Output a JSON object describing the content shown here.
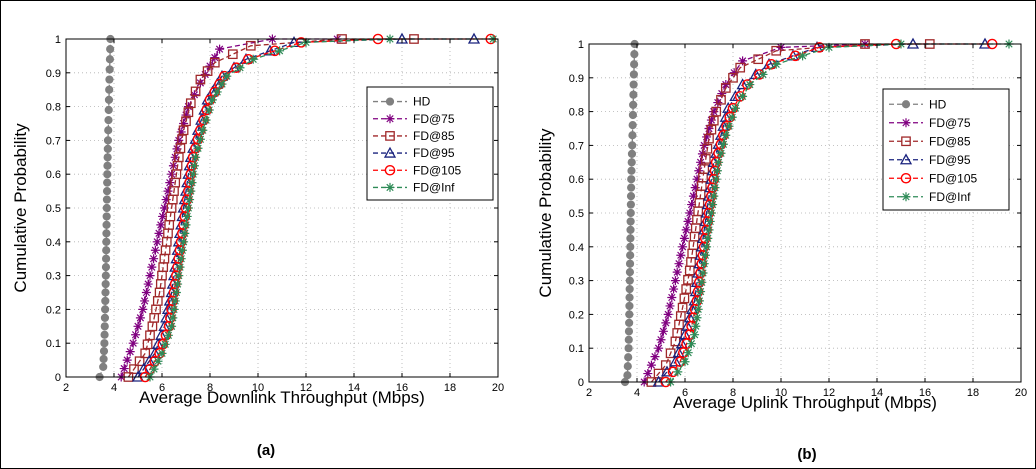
{
  "chart_data": [
    {
      "type": "line",
      "panel": "a",
      "caption": "(a)",
      "xlabel": "Average Downlink Throughput (Mbps)",
      "ylabel": "Cumulative Probability",
      "xlim": [
        2,
        20
      ],
      "ylim": [
        0,
        1
      ],
      "xticks": [
        "2",
        "4",
        "6",
        "8",
        "10",
        "12",
        "14",
        "16",
        "18",
        "20"
      ],
      "yticks": [
        "0",
        "0.1",
        "0.2",
        "0.3",
        "0.4",
        "0.5",
        "0.6",
        "0.7",
        "0.8",
        "0.9",
        "1"
      ],
      "grid": true,
      "legend_position": "upper-right",
      "series": [
        {
          "name": "HD",
          "color": "#808080",
          "marker": "circle",
          "x": [
            3.4,
            3.55,
            3.6,
            3.63,
            3.66,
            3.68,
            3.7,
            3.72,
            3.75,
            3.8,
            3.85
          ],
          "y": [
            0,
            0.03,
            0.1,
            0.2,
            0.3,
            0.4,
            0.5,
            0.6,
            0.7,
            0.85,
            1.0
          ]
        },
        {
          "name": "FD@75",
          "color": "#800080",
          "marker": "star",
          "x": [
            4.3,
            4.8,
            5.2,
            5.5,
            5.8,
            6.1,
            6.4,
            6.7,
            7.1,
            7.6,
            8.4,
            10.6,
            13.3
          ],
          "y": [
            0,
            0.1,
            0.2,
            0.3,
            0.4,
            0.5,
            0.6,
            0.7,
            0.8,
            0.87,
            0.97,
            1.0,
            1.0
          ]
        },
        {
          "name": "FD@85",
          "color": "#a0282a",
          "marker": "square",
          "x": [
            4.6,
            5.3,
            5.6,
            5.9,
            6.1,
            6.3,
            6.5,
            6.7,
            6.9,
            7.2,
            7.6,
            8.2,
            9.7,
            13.5,
            16.5
          ],
          "y": [
            0,
            0.07,
            0.15,
            0.25,
            0.35,
            0.45,
            0.55,
            0.65,
            0.73,
            0.81,
            0.88,
            0.93,
            0.98,
            1.0,
            1.0
          ]
        },
        {
          "name": "FD@95",
          "color": "#1a237e",
          "marker": "triangle",
          "x": [
            5.0,
            5.7,
            6.1,
            6.4,
            6.6,
            6.8,
            7.0,
            7.2,
            7.5,
            7.9,
            8.5,
            9.5,
            11.5,
            16.0,
            19.0
          ],
          "y": [
            0,
            0.07,
            0.15,
            0.25,
            0.35,
            0.45,
            0.55,
            0.65,
            0.73,
            0.82,
            0.89,
            0.94,
            0.99,
            1.0,
            1.0
          ]
        },
        {
          "name": "FD@105",
          "color": "#ff0000",
          "marker": "circle-open",
          "x": [
            5.3,
            5.9,
            6.3,
            6.5,
            6.7,
            6.9,
            7.1,
            7.3,
            7.6,
            8.0,
            8.6,
            9.6,
            11.8,
            15.0,
            19.7
          ],
          "y": [
            0,
            0.07,
            0.15,
            0.25,
            0.35,
            0.45,
            0.55,
            0.65,
            0.73,
            0.82,
            0.89,
            0.94,
            0.99,
            1.0,
            1.0
          ]
        },
        {
          "name": "FD@Inf",
          "color": "#2e8b57",
          "marker": "star",
          "x": [
            5.5,
            6.0,
            6.4,
            6.6,
            6.8,
            7.0,
            7.2,
            7.4,
            7.7,
            8.1,
            8.7,
            9.8,
            12.0,
            15.5,
            19.8
          ],
          "y": [
            0,
            0.07,
            0.15,
            0.25,
            0.35,
            0.45,
            0.55,
            0.65,
            0.73,
            0.82,
            0.89,
            0.94,
            0.99,
            1.0,
            1.0
          ]
        }
      ]
    },
    {
      "type": "line",
      "panel": "b",
      "caption": "(b)",
      "xlabel": "Average Uplink Throughput (Mbps)",
      "ylabel": "Cumulative Probability",
      "xlim": [
        2,
        20
      ],
      "ylim": [
        0,
        1
      ],
      "xticks": [
        "2",
        "4",
        "6",
        "8",
        "10",
        "12",
        "14",
        "16",
        "18",
        "20"
      ],
      "yticks": [
        "0",
        "0.1",
        "0.2",
        "0.3",
        "0.4",
        "0.5",
        "0.6",
        "0.7",
        "0.8",
        "0.9",
        "1"
      ],
      "grid": true,
      "legend_position": "upper-right",
      "series": [
        {
          "name": "HD",
          "color": "#808080",
          "marker": "circle",
          "x": [
            3.5,
            3.6,
            3.65,
            3.68,
            3.7,
            3.72,
            3.74,
            3.76,
            3.8,
            3.85,
            3.9
          ],
          "y": [
            0,
            0.02,
            0.1,
            0.2,
            0.3,
            0.4,
            0.5,
            0.6,
            0.7,
            0.85,
            1.0
          ]
        },
        {
          "name": "FD@75",
          "color": "#800080",
          "marker": "star",
          "x": [
            4.3,
            4.9,
            5.3,
            5.6,
            5.9,
            6.2,
            6.5,
            6.8,
            7.2,
            7.7,
            8.4,
            10.0,
            13.5
          ],
          "y": [
            0,
            0.1,
            0.2,
            0.3,
            0.4,
            0.5,
            0.6,
            0.7,
            0.8,
            0.88,
            0.95,
            0.99,
            1.0
          ]
        },
        {
          "name": "FD@85",
          "color": "#a0282a",
          "marker": "square",
          "x": [
            4.6,
            5.2,
            5.6,
            5.9,
            6.2,
            6.4,
            6.6,
            6.8,
            7.0,
            7.3,
            7.7,
            8.3,
            9.8,
            13.5,
            16.2
          ],
          "y": [
            0,
            0.05,
            0.12,
            0.22,
            0.33,
            0.43,
            0.53,
            0.63,
            0.72,
            0.8,
            0.87,
            0.93,
            0.98,
            1.0,
            1.0
          ]
        },
        {
          "name": "FD@95",
          "color": "#1a237e",
          "marker": "triangle",
          "x": [
            4.9,
            5.6,
            6.0,
            6.4,
            6.6,
            6.8,
            7.0,
            7.2,
            7.5,
            7.8,
            8.4,
            9.5,
            11.5,
            15.5,
            18.5
          ],
          "y": [
            0,
            0.06,
            0.14,
            0.24,
            0.35,
            0.45,
            0.55,
            0.65,
            0.73,
            0.81,
            0.88,
            0.94,
            0.99,
            1.0,
            1.0
          ]
        },
        {
          "name": "FD@105",
          "color": "#ff0000",
          "marker": "circle-open",
          "x": [
            5.2,
            5.8,
            6.2,
            6.5,
            6.7,
            6.9,
            7.1,
            7.3,
            7.6,
            8.0,
            8.6,
            9.6,
            11.6,
            14.8,
            18.8
          ],
          "y": [
            0,
            0.06,
            0.14,
            0.24,
            0.35,
            0.45,
            0.55,
            0.65,
            0.73,
            0.81,
            0.88,
            0.94,
            0.99,
            1.0,
            1.0
          ]
        },
        {
          "name": "FD@Inf",
          "color": "#2e8b57",
          "marker": "star",
          "x": [
            5.4,
            6.0,
            6.4,
            6.6,
            6.8,
            7.0,
            7.2,
            7.4,
            7.7,
            8.1,
            8.7,
            9.8,
            12.0,
            15.0,
            19.5
          ],
          "y": [
            0,
            0.06,
            0.14,
            0.24,
            0.35,
            0.45,
            0.55,
            0.65,
            0.73,
            0.81,
            0.88,
            0.94,
            0.99,
            1.0,
            1.0
          ]
        }
      ]
    }
  ]
}
